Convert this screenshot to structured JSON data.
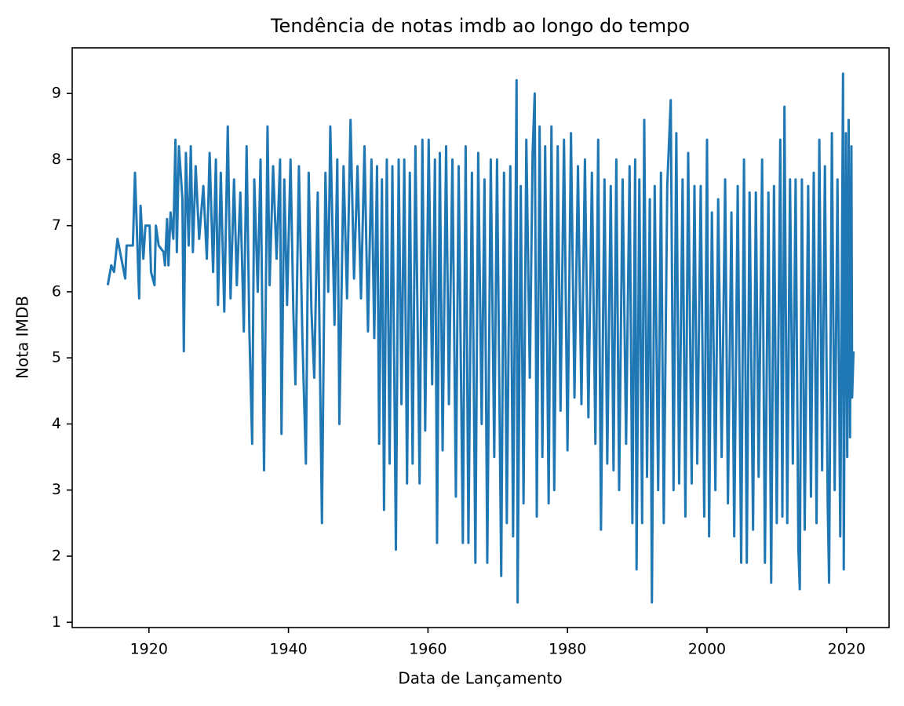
{
  "chart_data": {
    "type": "line",
    "title": "Tendência de notas imdb ao longo do tempo",
    "x_label": "Data de Lançamento",
    "y_label": "Nota IMDB",
    "xlim": [
      1909,
      2026.1
    ],
    "ylim": [
      0.92,
      9.69
    ],
    "xticks": [
      1920,
      1940,
      1960,
      1980,
      2000,
      2020
    ],
    "yticks": [
      1,
      2,
      3,
      4,
      5,
      6,
      7,
      8,
      9
    ],
    "grid": false,
    "series": [
      {
        "name": "Nota IMDB",
        "color": "#1f77b4",
        "x": [
          1914.1,
          1914.6,
          1915.0,
          1915.5,
          1916.6,
          1916.8,
          1917.7,
          1918.0,
          1918.6,
          1918.8,
          1919.2,
          1919.5,
          1920.1,
          1920.3,
          1920.8,
          1921.0,
          1921.4,
          1922.1,
          1922.3,
          1922.6,
          1922.8,
          1923.1,
          1923.5,
          1923.8,
          1924.0,
          1924.3,
          1924.8,
          1925.0,
          1925.3,
          1925.7,
          1926.0,
          1926.3,
          1926.7,
          1927.2,
          1927.8,
          1928.3,
          1928.7,
          1929.2,
          1929.6,
          1929.9,
          1930.3,
          1930.8,
          1931.3,
          1931.7,
          1932.2,
          1932.6,
          1933.1,
          1933.6,
          1934.0,
          1934.4,
          1934.8,
          1935.1,
          1935.6,
          1936.0,
          1936.5,
          1937.0,
          1937.3,
          1937.8,
          1938.3,
          1938.8,
          1939.0,
          1939.4,
          1939.8,
          1940.3,
          1940.7,
          1941.0,
          1941.5,
          1942.0,
          1942.5,
          1942.9,
          1943.3,
          1943.7,
          1944.2,
          1944.8,
          1945.3,
          1945.7,
          1946.0,
          1946.6,
          1947.0,
          1947.3,
          1947.9,
          1948.4,
          1948.9,
          1949.4,
          1949.9,
          1950.4,
          1950.9,
          1951.4,
          1951.9,
          1952.3,
          1952.7,
          1953.0,
          1953.4,
          1953.7,
          1954.1,
          1954.5,
          1954.9,
          1955.4,
          1955.8,
          1956.2,
          1956.6,
          1957.0,
          1957.4,
          1957.8,
          1958.2,
          1958.8,
          1959.2,
          1959.6,
          1960.1,
          1960.6,
          1961.0,
          1961.3,
          1961.7,
          1962.1,
          1962.6,
          1963.0,
          1963.5,
          1964.0,
          1964.4,
          1965.0,
          1965.4,
          1965.8,
          1966.3,
          1966.8,
          1967.2,
          1967.7,
          1968.1,
          1968.5,
          1969.0,
          1969.5,
          1969.9,
          1970.5,
          1970.9,
          1971.3,
          1971.8,
          1972.2,
          1972.7,
          1972.85,
          1973.3,
          1973.7,
          1974.1,
          1974.6,
          1975.0,
          1975.3,
          1975.6,
          1976.0,
          1976.4,
          1976.8,
          1977.3,
          1977.7,
          1978.1,
          1978.6,
          1979.0,
          1979.5,
          1980.0,
          1980.5,
          1981.0,
          1981.5,
          1982.0,
          1982.5,
          1983.0,
          1983.5,
          1984.0,
          1984.4,
          1984.8,
          1985.3,
          1985.7,
          1986.2,
          1986.6,
          1987.0,
          1987.4,
          1987.9,
          1988.4,
          1988.9,
          1989.3,
          1989.7,
          1989.9,
          1990.3,
          1990.7,
          1991.0,
          1991.4,
          1991.8,
          1992.1,
          1992.5,
          1993.0,
          1993.4,
          1993.8,
          1994.3,
          1994.8,
          1995.2,
          1995.6,
          1996.0,
          1996.5,
          1996.9,
          1997.3,
          1997.8,
          1998.2,
          1998.6,
          1999.1,
          1999.6,
          2000.0,
          2000.3,
          2000.7,
          2001.2,
          2001.6,
          2002.1,
          2002.6,
          2003.0,
          2003.5,
          2003.9,
          2004.4,
          2004.9,
          2005.3,
          2005.7,
          2006.1,
          2006.6,
          2007.0,
          2007.4,
          2007.9,
          2008.3,
          2008.8,
          2009.2,
          2009.6,
          2010.0,
          2010.5,
          2010.8,
          2011.1,
          2011.5,
          2011.9,
          2012.3,
          2012.7,
          2013.1,
          2013.3,
          2013.6,
          2014.0,
          2014.5,
          2014.9,
          2015.3,
          2015.7,
          2016.1,
          2016.5,
          2016.9,
          2017.3,
          2017.5,
          2017.9,
          2018.3,
          2018.7,
          2019.1,
          2019.5,
          2019.6,
          2019.9,
          2020.1,
          2020.3,
          2020.5,
          2020.7,
          2020.8,
          2021.0
        ],
        "values": [
          6.1,
          6.4,
          6.3,
          6.8,
          6.2,
          6.7,
          6.7,
          7.8,
          5.9,
          7.3,
          6.5,
          7.0,
          7.0,
          6.3,
          6.1,
          7.0,
          6.7,
          6.6,
          6.4,
          7.1,
          6.4,
          7.2,
          6.8,
          8.3,
          6.6,
          8.2,
          7.4,
          5.1,
          8.1,
          6.7,
          8.2,
          6.6,
          7.9,
          6.8,
          7.6,
          6.5,
          8.1,
          6.3,
          8.0,
          5.8,
          7.8,
          5.7,
          8.5,
          5.9,
          7.7,
          6.1,
          7.5,
          5.4,
          8.2,
          5.4,
          3.7,
          7.7,
          6.0,
          8.0,
          3.3,
          8.5,
          6.1,
          7.9,
          6.5,
          8.0,
          3.85,
          7.7,
          5.8,
          8.0,
          5.7,
          4.6,
          7.9,
          5.3,
          3.4,
          7.8,
          5.7,
          4.7,
          7.5,
          2.5,
          7.8,
          6.0,
          8.5,
          5.5,
          8.0,
          4.0,
          7.9,
          5.9,
          8.6,
          6.2,
          7.9,
          5.9,
          8.2,
          5.4,
          8.0,
          5.3,
          7.9,
          3.7,
          7.7,
          2.7,
          8.0,
          3.4,
          7.9,
          2.1,
          8.0,
          4.3,
          8.0,
          3.1,
          7.8,
          3.4,
          8.2,
          3.1,
          8.3,
          3.9,
          8.3,
          4.6,
          8.0,
          2.2,
          8.1,
          3.6,
          8.2,
          4.3,
          8.0,
          2.9,
          7.9,
          2.2,
          8.2,
          2.2,
          7.8,
          1.9,
          8.1,
          4.0,
          7.7,
          1.9,
          8.0,
          3.5,
          8.0,
          1.7,
          7.8,
          2.5,
          7.9,
          2.3,
          9.2,
          1.3,
          7.6,
          2.8,
          8.3,
          4.7,
          8.1,
          9.0,
          2.6,
          8.5,
          3.5,
          8.2,
          2.8,
          8.5,
          3.0,
          8.2,
          4.2,
          8.3,
          3.6,
          8.4,
          4.4,
          7.9,
          4.3,
          8.0,
          4.1,
          7.8,
          3.7,
          8.3,
          2.4,
          7.7,
          3.4,
          7.6,
          3.3,
          8.0,
          3.0,
          7.7,
          3.7,
          7.9,
          2.5,
          8.0,
          1.8,
          7.7,
          2.5,
          8.6,
          3.2,
          7.4,
          1.3,
          7.6,
          3.0,
          7.8,
          2.5,
          7.6,
          8.9,
          3.0,
          8.4,
          3.1,
          7.7,
          2.6,
          8.1,
          3.1,
          7.6,
          3.4,
          7.6,
          2.6,
          8.3,
          2.3,
          7.2,
          3.0,
          7.4,
          3.5,
          7.7,
          2.8,
          7.2,
          2.3,
          7.6,
          1.9,
          8.0,
          1.9,
          7.5,
          2.4,
          7.5,
          3.2,
          8.0,
          1.9,
          7.5,
          1.6,
          7.6,
          2.5,
          8.3,
          2.6,
          8.8,
          2.5,
          7.7,
          3.4,
          7.7,
          2.1,
          1.5,
          7.7,
          2.4,
          7.6,
          2.9,
          7.8,
          2.5,
          8.3,
          3.3,
          7.9,
          2.8,
          1.6,
          8.4,
          3.0,
          7.7,
          2.3,
          9.3,
          1.8,
          8.4,
          3.5,
          8.6,
          3.8,
          8.2,
          4.4,
          5.1
        ]
      }
    ]
  }
}
